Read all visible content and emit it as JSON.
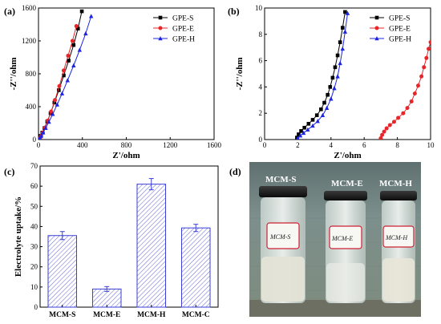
{
  "panels": {
    "a": "(a)",
    "b": "(b)",
    "c": "(c)",
    "d": "(d)"
  },
  "photo": {
    "labels": [
      "MCM-S",
      "MCM-E",
      "MCM-H"
    ],
    "handwriting": [
      "MCM-S",
      "MCM-E",
      "MCM-H"
    ]
  },
  "chart_data": [
    {
      "panel": "a",
      "type": "scatter",
      "xlabel": "Z'/ohm",
      "ylabel": "-Z''/ohm",
      "xlim": [
        0,
        1600
      ],
      "ylim": [
        0,
        1600
      ],
      "xticks": [
        0,
        400,
        800,
        1200,
        1600
      ],
      "yticks": [
        0,
        400,
        800,
        1200,
        1600
      ],
      "legend_position": "top-right",
      "series": [
        {
          "name": "GPE-S",
          "color": "#000000",
          "marker": "square",
          "x": [
            2,
            10,
            20,
            35,
            55,
            80,
            110,
            145,
            185,
            230,
            275,
            320,
            360,
            395
          ],
          "y": [
            0,
            20,
            45,
            85,
            140,
            220,
            320,
            450,
            600,
            780,
            960,
            1150,
            1350,
            1560
          ]
        },
        {
          "name": "GPE-E",
          "color": "#e8262a",
          "marker": "circle",
          "x": [
            7,
            15,
            25,
            40,
            60,
            85,
            115,
            150,
            190,
            230,
            270,
            310,
            345
          ],
          "y": [
            0,
            20,
            45,
            85,
            145,
            230,
            340,
            480,
            650,
            840,
            1020,
            1200,
            1380
          ]
        },
        {
          "name": "GPE-H",
          "color": "#1d24e0",
          "marker": "triangle",
          "x": [
            2,
            12,
            25,
            42,
            65,
            95,
            130,
            170,
            215,
            265,
            320,
            375,
            430,
            480
          ],
          "y": [
            0,
            20,
            45,
            85,
            140,
            215,
            310,
            425,
            560,
            720,
            900,
            1090,
            1290,
            1500
          ]
        }
      ]
    },
    {
      "panel": "b",
      "type": "scatter",
      "xlabel": "Z'/ohm",
      "ylabel": "-Z''/ohm",
      "xlim": [
        0,
        10
      ],
      "ylim": [
        0,
        10
      ],
      "xticks": [
        0,
        2,
        4,
        6,
        8,
        10
      ],
      "yticks": [
        0,
        2,
        4,
        6,
        8,
        10
      ],
      "legend_position": "top-right",
      "series": [
        {
          "name": "GPE-S",
          "color": "#000000",
          "marker": "square",
          "x": [
            1.95,
            2.05,
            2.2,
            2.4,
            2.65,
            2.9,
            3.15,
            3.4,
            3.6,
            3.8,
            3.95,
            4.1,
            4.25,
            4.4,
            4.55,
            4.7,
            4.85
          ],
          "y": [
            0.15,
            0.4,
            0.65,
            0.9,
            1.2,
            1.5,
            1.85,
            2.3,
            2.8,
            3.4,
            4.0,
            4.7,
            5.5,
            6.4,
            7.4,
            8.5,
            9.7
          ]
        },
        {
          "name": "GPE-E",
          "color": "#e8262a",
          "marker": "circle",
          "x": [
            7.0,
            7.08,
            7.2,
            7.35,
            7.55,
            7.8,
            8.05,
            8.35,
            8.6,
            8.85,
            9.05,
            9.25,
            9.45,
            9.6,
            9.75,
            9.88,
            10.0
          ],
          "y": [
            0.1,
            0.35,
            0.6,
            0.85,
            1.1,
            1.35,
            1.65,
            2.0,
            2.4,
            2.9,
            3.5,
            4.1,
            4.8,
            5.5,
            6.2,
            6.9,
            7.4
          ]
        },
        {
          "name": "GPE-H",
          "color": "#1d24e0",
          "marker": "triangle",
          "x": [
            2.0,
            2.15,
            2.35,
            2.6,
            2.9,
            3.2,
            3.5,
            3.75,
            4.0,
            4.2,
            4.4,
            4.55,
            4.7,
            4.85,
            5.0
          ],
          "y": [
            0.1,
            0.3,
            0.5,
            0.75,
            1.05,
            1.4,
            1.85,
            2.4,
            3.1,
            3.9,
            4.8,
            5.8,
            6.9,
            8.2,
            9.6
          ]
        }
      ]
    },
    {
      "panel": "c",
      "type": "bar",
      "xlabel": "",
      "ylabel": "Electrolyte uptake/%",
      "ylim": [
        0,
        70
      ],
      "yticks": [
        0,
        10,
        20,
        30,
        40,
        50,
        60,
        70
      ],
      "categories": [
        "MCM-S",
        "MCM-E",
        "MCM-H",
        "MCM-C"
      ],
      "values": [
        35.5,
        9.0,
        61.0,
        39.3
      ],
      "errors": [
        2.0,
        1.2,
        2.8,
        1.8
      ],
      "color": "#3b3fd6"
    }
  ]
}
